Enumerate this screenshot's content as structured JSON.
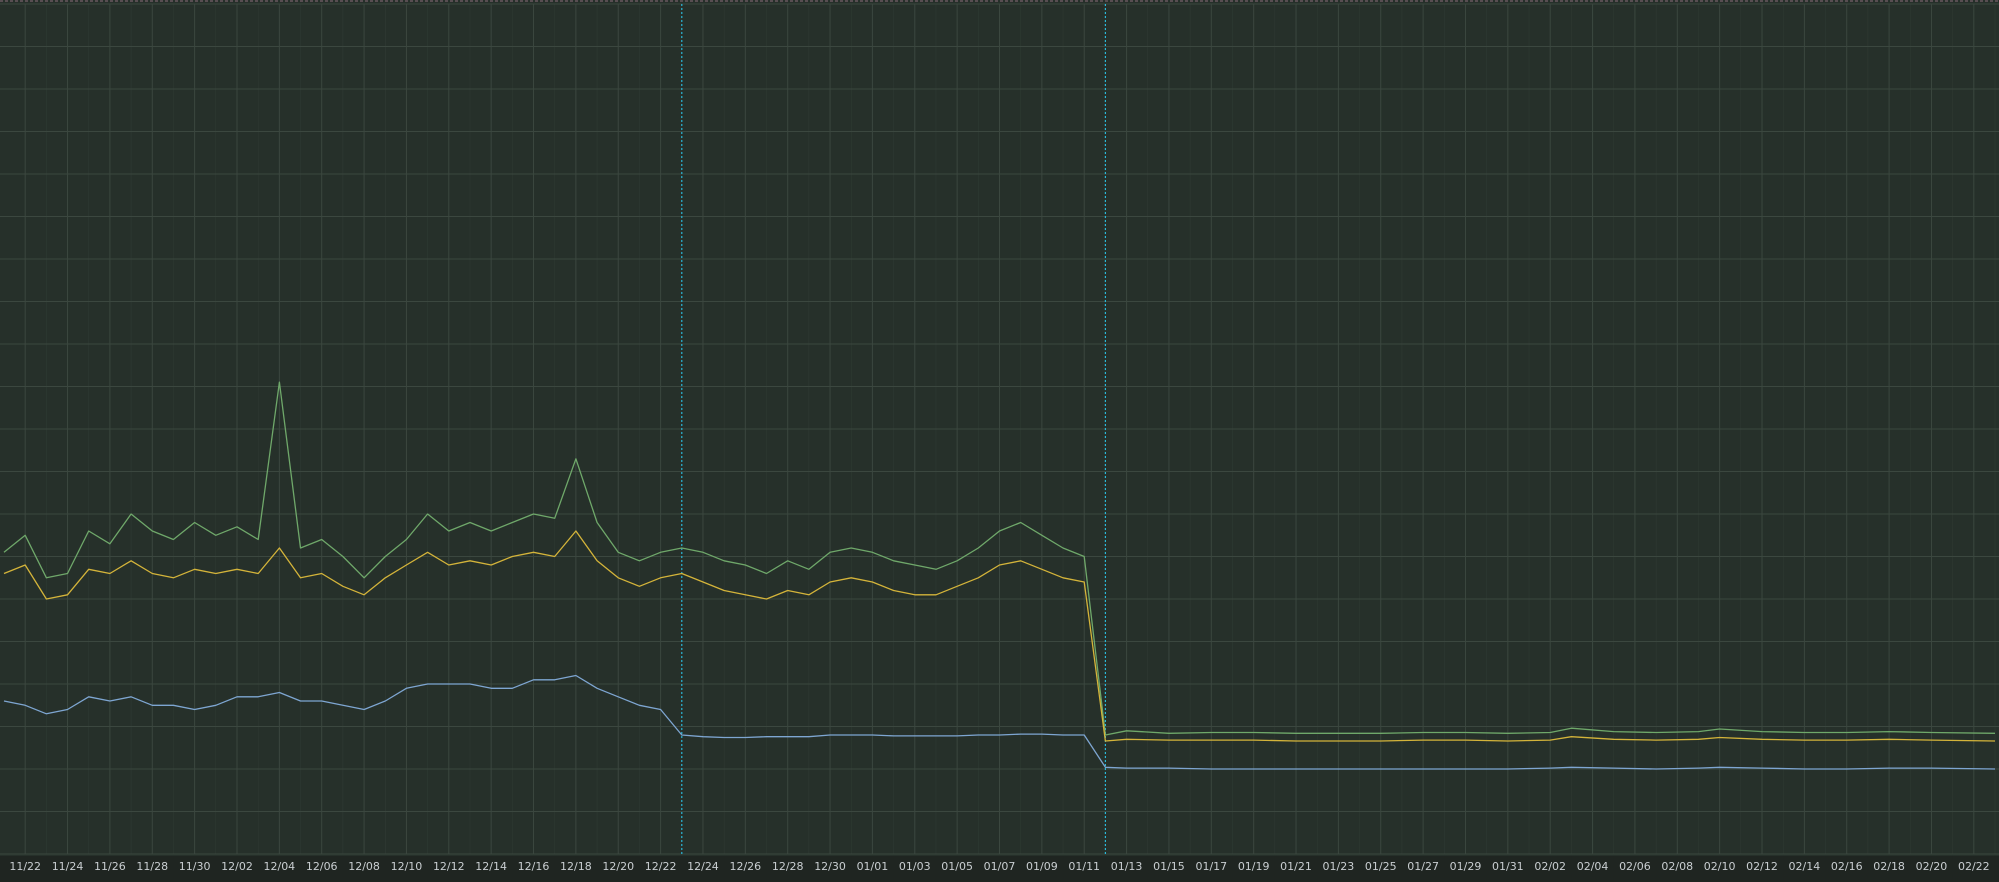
{
  "chart_data": {
    "type": "line",
    "grid": true,
    "ylim": [
      0,
      100
    ],
    "x_labels": [
      "11/22",
      "11/24",
      "11/26",
      "11/28",
      "11/30",
      "12/02",
      "12/04",
      "12/06",
      "12/08",
      "12/10",
      "12/12",
      "12/14",
      "12/16",
      "12/18",
      "12/20",
      "12/22",
      "12/24",
      "12/26",
      "12/28",
      "12/30",
      "01/01",
      "01/03",
      "01/05",
      "01/07",
      "01/09",
      "01/11",
      "01/13",
      "01/15",
      "01/17",
      "01/19",
      "01/21",
      "01/23",
      "01/25",
      "01/27",
      "01/29",
      "01/31",
      "02/02",
      "02/04",
      "02/06",
      "02/08",
      "02/10",
      "02/12",
      "02/14",
      "02/16",
      "02/18",
      "02/20",
      "02/22"
    ],
    "markers": [
      "12/23",
      "01/12"
    ],
    "colors": {
      "background": "#26302a",
      "grid": "#3b473f",
      "marker": "#2ab8d8",
      "series": [
        "#6fa86a",
        "#d4b43a",
        "#7ea6d2"
      ]
    },
    "series": [
      {
        "points": [
          [
            "11/21",
            35.5
          ],
          [
            "11/22",
            37.5
          ],
          [
            "11/23",
            32.5
          ],
          [
            "11/24",
            33
          ],
          [
            "11/25",
            38
          ],
          [
            "11/26",
            36.5
          ],
          [
            "11/27",
            40
          ],
          [
            "11/28",
            38
          ],
          [
            "11/29",
            37
          ],
          [
            "11/30",
            39
          ],
          [
            "12/01",
            37.5
          ],
          [
            "12/02",
            38.5
          ],
          [
            "12/03",
            37
          ],
          [
            "12/04",
            55.5
          ],
          [
            "12/05",
            36
          ],
          [
            "12/06",
            37
          ],
          [
            "12/07",
            35
          ],
          [
            "12/08",
            32.5
          ],
          [
            "12/09",
            35
          ],
          [
            "12/10",
            37
          ],
          [
            "12/11",
            40
          ],
          [
            "12/12",
            38
          ],
          [
            "12/13",
            39
          ],
          [
            "12/14",
            38
          ],
          [
            "12/15",
            39
          ],
          [
            "12/16",
            40
          ],
          [
            "12/17",
            39.5
          ],
          [
            "12/18",
            46.5
          ],
          [
            "12/19",
            39
          ],
          [
            "12/20",
            35.5
          ],
          [
            "12/21",
            34.5
          ],
          [
            "12/22",
            35.5
          ],
          [
            "12/23",
            36
          ],
          [
            "12/24",
            35.5
          ],
          [
            "12/25",
            34.5
          ],
          [
            "12/26",
            34
          ],
          [
            "12/27",
            33
          ],
          [
            "12/28",
            34.5
          ],
          [
            "12/29",
            33.5
          ],
          [
            "12/30",
            35.5
          ],
          [
            "12/31",
            36
          ],
          [
            "01/01",
            35.5
          ],
          [
            "01/02",
            34.5
          ],
          [
            "01/03",
            34
          ],
          [
            "01/04",
            33.5
          ],
          [
            "01/05",
            34.5
          ],
          [
            "01/06",
            36
          ],
          [
            "01/07",
            38
          ],
          [
            "01/08",
            39
          ],
          [
            "01/09",
            37.5
          ],
          [
            "01/10",
            36
          ],
          [
            "01/11",
            35
          ],
          [
            "01/12",
            14
          ],
          [
            "01/13",
            14.5
          ],
          [
            "01/15",
            14.2
          ],
          [
            "01/17",
            14.3
          ],
          [
            "01/19",
            14.3
          ],
          [
            "01/21",
            14.2
          ],
          [
            "01/23",
            14.2
          ],
          [
            "01/25",
            14.2
          ],
          [
            "01/27",
            14.3
          ],
          [
            "01/29",
            14.3
          ],
          [
            "01/31",
            14.2
          ],
          [
            "02/02",
            14.3
          ],
          [
            "02/03",
            14.8
          ],
          [
            "02/05",
            14.4
          ],
          [
            "02/07",
            14.3
          ],
          [
            "02/09",
            14.4
          ],
          [
            "02/10",
            14.7
          ],
          [
            "02/12",
            14.4
          ],
          [
            "02/14",
            14.3
          ],
          [
            "02/16",
            14.3
          ],
          [
            "02/18",
            14.4
          ],
          [
            "02/20",
            14.3
          ],
          [
            "02/23",
            14.2
          ]
        ]
      },
      {
        "points": [
          [
            "11/21",
            33
          ],
          [
            "11/22",
            34
          ],
          [
            "11/23",
            30
          ],
          [
            "11/24",
            30.5
          ],
          [
            "11/25",
            33.5
          ],
          [
            "11/26",
            33
          ],
          [
            "11/27",
            34.5
          ],
          [
            "11/28",
            33
          ],
          [
            "11/29",
            32.5
          ],
          [
            "11/30",
            33.5
          ],
          [
            "12/01",
            33
          ],
          [
            "12/02",
            33.5
          ],
          [
            "12/03",
            33
          ],
          [
            "12/04",
            36
          ],
          [
            "12/05",
            32.5
          ],
          [
            "12/06",
            33
          ],
          [
            "12/07",
            31.5
          ],
          [
            "12/08",
            30.5
          ],
          [
            "12/09",
            32.5
          ],
          [
            "12/10",
            34
          ],
          [
            "12/11",
            35.5
          ],
          [
            "12/12",
            34
          ],
          [
            "12/13",
            34.5
          ],
          [
            "12/14",
            34
          ],
          [
            "12/15",
            35
          ],
          [
            "12/16",
            35.5
          ],
          [
            "12/17",
            35
          ],
          [
            "12/18",
            38
          ],
          [
            "12/19",
            34.5
          ],
          [
            "12/20",
            32.5
          ],
          [
            "12/21",
            31.5
          ],
          [
            "12/22",
            32.5
          ],
          [
            "12/23",
            33
          ],
          [
            "12/24",
            32
          ],
          [
            "12/25",
            31
          ],
          [
            "12/26",
            30.5
          ],
          [
            "12/27",
            30
          ],
          [
            "12/28",
            31
          ],
          [
            "12/29",
            30.5
          ],
          [
            "12/30",
            32
          ],
          [
            "12/31",
            32.5
          ],
          [
            "01/01",
            32
          ],
          [
            "01/02",
            31
          ],
          [
            "01/03",
            30.5
          ],
          [
            "01/04",
            30.5
          ],
          [
            "01/05",
            31.5
          ],
          [
            "01/06",
            32.5
          ],
          [
            "01/07",
            34
          ],
          [
            "01/08",
            34.5
          ],
          [
            "01/09",
            33.5
          ],
          [
            "01/10",
            32.5
          ],
          [
            "01/11",
            32
          ],
          [
            "01/12",
            13.3
          ],
          [
            "01/13",
            13.5
          ],
          [
            "01/15",
            13.4
          ],
          [
            "01/17",
            13.4
          ],
          [
            "01/19",
            13.4
          ],
          [
            "01/21",
            13.3
          ],
          [
            "01/23",
            13.3
          ],
          [
            "01/25",
            13.3
          ],
          [
            "01/27",
            13.4
          ],
          [
            "01/29",
            13.4
          ],
          [
            "01/31",
            13.3
          ],
          [
            "02/02",
            13.4
          ],
          [
            "02/03",
            13.8
          ],
          [
            "02/05",
            13.5
          ],
          [
            "02/07",
            13.4
          ],
          [
            "02/09",
            13.5
          ],
          [
            "02/10",
            13.7
          ],
          [
            "02/12",
            13.5
          ],
          [
            "02/14",
            13.4
          ],
          [
            "02/16",
            13.4
          ],
          [
            "02/18",
            13.5
          ],
          [
            "02/20",
            13.4
          ],
          [
            "02/23",
            13.3
          ]
        ]
      },
      {
        "points": [
          [
            "11/21",
            18
          ],
          [
            "11/22",
            17.5
          ],
          [
            "11/23",
            16.5
          ],
          [
            "11/24",
            17
          ],
          [
            "11/25",
            18.5
          ],
          [
            "11/26",
            18
          ],
          [
            "11/27",
            18.5
          ],
          [
            "11/28",
            17.5
          ],
          [
            "11/29",
            17.5
          ],
          [
            "11/30",
            17
          ],
          [
            "12/01",
            17.5
          ],
          [
            "12/02",
            18.5
          ],
          [
            "12/03",
            18.5
          ],
          [
            "12/04",
            19
          ],
          [
            "12/05",
            18
          ],
          [
            "12/06",
            18
          ],
          [
            "12/07",
            17.5
          ],
          [
            "12/08",
            17
          ],
          [
            "12/09",
            18
          ],
          [
            "12/10",
            19.5
          ],
          [
            "12/11",
            20
          ],
          [
            "12/12",
            20
          ],
          [
            "12/13",
            20
          ],
          [
            "12/14",
            19.5
          ],
          [
            "12/15",
            19.5
          ],
          [
            "12/16",
            20.5
          ],
          [
            "12/17",
            20.5
          ],
          [
            "12/18",
            21
          ],
          [
            "12/19",
            19.5
          ],
          [
            "12/20",
            18.5
          ],
          [
            "12/21",
            17.5
          ],
          [
            "12/22",
            17
          ],
          [
            "12/23",
            14
          ],
          [
            "12/24",
            13.8
          ],
          [
            "12/25",
            13.7
          ],
          [
            "12/26",
            13.7
          ],
          [
            "12/27",
            13.8
          ],
          [
            "12/28",
            13.8
          ],
          [
            "12/29",
            13.8
          ],
          [
            "12/30",
            14
          ],
          [
            "12/31",
            14
          ],
          [
            "01/01",
            14
          ],
          [
            "01/02",
            13.9
          ],
          [
            "01/03",
            13.9
          ],
          [
            "01/04",
            13.9
          ],
          [
            "01/05",
            13.9
          ],
          [
            "01/06",
            14
          ],
          [
            "01/07",
            14
          ],
          [
            "01/08",
            14.1
          ],
          [
            "01/09",
            14.1
          ],
          [
            "01/10",
            14
          ],
          [
            "01/11",
            14
          ],
          [
            "01/12",
            10.2
          ],
          [
            "01/13",
            10.1
          ],
          [
            "01/15",
            10.1
          ],
          [
            "01/17",
            10
          ],
          [
            "01/19",
            10
          ],
          [
            "01/21",
            10
          ],
          [
            "01/23",
            10
          ],
          [
            "01/25",
            10
          ],
          [
            "01/27",
            10
          ],
          [
            "01/29",
            10
          ],
          [
            "01/31",
            10
          ],
          [
            "02/02",
            10.1
          ],
          [
            "02/03",
            10.2
          ],
          [
            "02/05",
            10.1
          ],
          [
            "02/07",
            10
          ],
          [
            "02/09",
            10.1
          ],
          [
            "02/10",
            10.2
          ],
          [
            "02/12",
            10.1
          ],
          [
            "02/14",
            10
          ],
          [
            "02/16",
            10
          ],
          [
            "02/18",
            10.1
          ],
          [
            "02/20",
            10.1
          ],
          [
            "02/23",
            10
          ]
        ]
      }
    ]
  }
}
